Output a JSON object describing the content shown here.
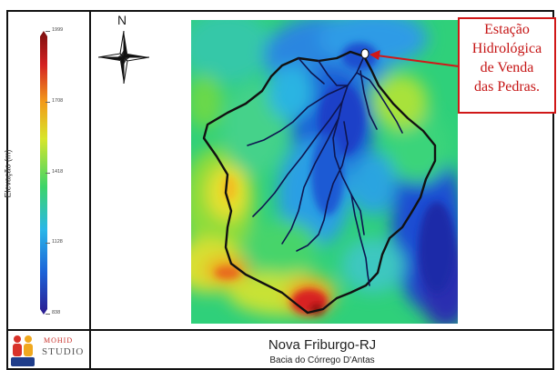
{
  "legend": {
    "title": "Elevação (m)",
    "ticks": [
      "1999",
      "1708",
      "1418",
      "1128",
      "838"
    ],
    "colors": [
      "#2b1a8f",
      "#1c63d8",
      "#2ab7e8",
      "#3cd46a",
      "#e8e830",
      "#f29a1a",
      "#d42222",
      "#7a0e0e"
    ]
  },
  "north_arrow": {
    "label": "N"
  },
  "callout": {
    "lines": [
      "Estação",
      "Hidrológica",
      "de Venda",
      "das Pedras."
    ],
    "color": "#d01818"
  },
  "footer": {
    "title": "Nova Friburgo-RJ",
    "subtitle": "Bacia do Córrego D'Antas"
  },
  "logo": {
    "line1": "MOHID",
    "line2": "STUDIO"
  }
}
